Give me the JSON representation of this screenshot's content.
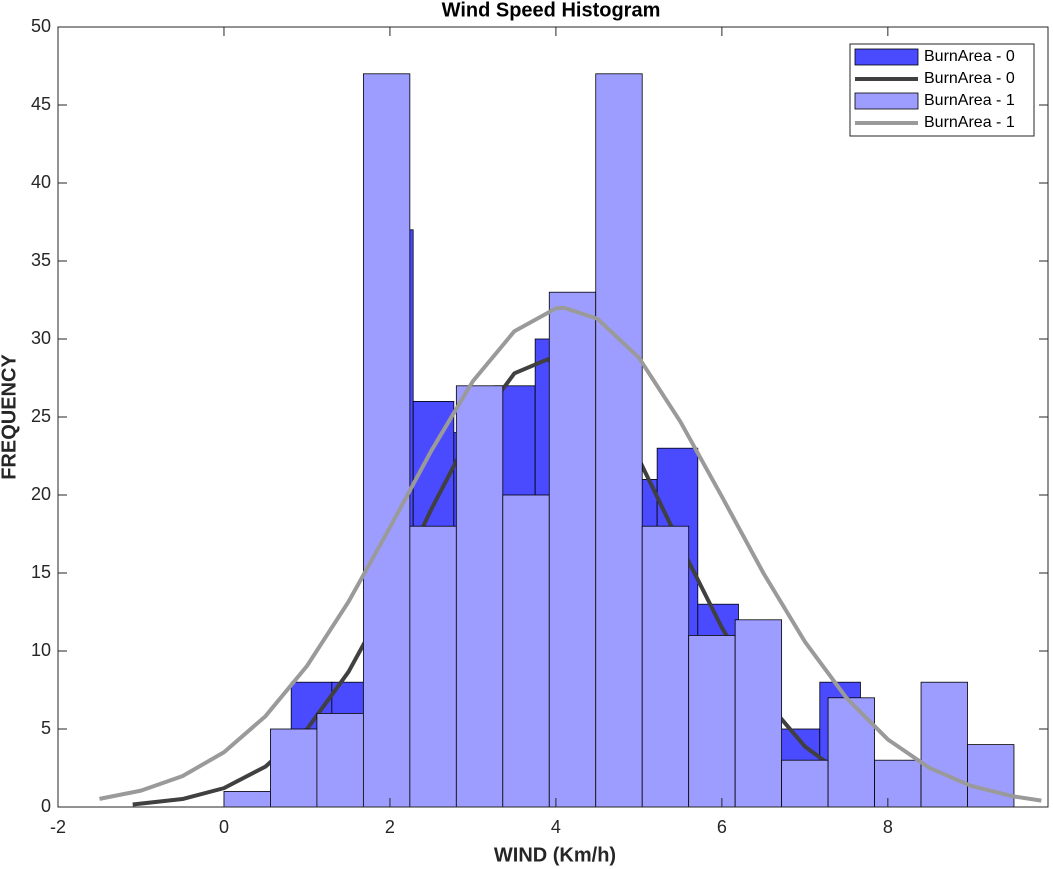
{
  "chart_data": {
    "type": "histogram",
    "title": "Wind Speed Histogram",
    "xlabel": "WIND (Km/h)",
    "ylabel": "FREQUENCY",
    "xlim": [
      -2,
      9.93
    ],
    "ylim": [
      0,
      50
    ],
    "xticks": [
      -2,
      0,
      2,
      4,
      6,
      8
    ],
    "yticks": [
      0,
      5,
      10,
      15,
      20,
      25,
      30,
      35,
      40,
      45,
      50
    ],
    "legend": "upper right",
    "series": [
      {
        "name": "BurnArea - 0",
        "type": "bar",
        "color": "#4a4aff",
        "bins": [
          0.81,
          1.3,
          1.79,
          2.28,
          2.77,
          3.26,
          3.75,
          4.24,
          4.73,
          5.22,
          5.71,
          6.2,
          6.69,
          7.18,
          7.67
        ],
        "values": [
          8,
          8,
          37,
          26,
          24,
          27,
          30,
          28,
          21,
          23,
          13,
          8,
          5,
          8
        ]
      },
      {
        "name": "BurnArea - 0",
        "type": "line",
        "color": "#404040",
        "x": [
          -1.1,
          -0.5,
          0,
          0.5,
          1,
          1.5,
          2,
          2.5,
          3,
          3.5,
          3.9,
          4.5,
          5,
          5.5,
          6,
          6.5,
          7,
          7.5,
          8,
          8.5,
          9
        ],
        "values": [
          0.16,
          0.51,
          1.21,
          2.59,
          4.99,
          8.66,
          13.5,
          19.1,
          24.2,
          27.8,
          28.7,
          26.6,
          22.3,
          16.8,
          11.5,
          7.0,
          3.88,
          1.93,
          0.87,
          0.35,
          0.13
        ]
      },
      {
        "name": "BurnArea - 1",
        "type": "bar",
        "color": "#9d9dff",
        "bins": [
          0,
          0.56,
          1.12,
          1.68,
          2.24,
          2.8,
          3.36,
          3.92,
          4.48,
          5.04,
          5.6,
          6.16,
          6.72,
          7.28,
          7.84,
          8.4,
          8.96,
          9.52
        ],
        "values": [
          1,
          5,
          6,
          47,
          18,
          27,
          20,
          33,
          47,
          18,
          11,
          12,
          3,
          7,
          3,
          8,
          4
        ]
      },
      {
        "name": "BurnArea - 1",
        "type": "line",
        "color": "#9a9a9a",
        "x": [
          -1.5,
          -1,
          -0.5,
          0,
          0.5,
          1,
          1.5,
          2,
          2.5,
          3,
          3.5,
          4,
          4.1,
          4.5,
          5,
          5.5,
          6,
          6.5,
          7,
          7.5,
          8,
          8.5,
          9,
          9.5,
          9.85
        ],
        "values": [
          0.52,
          1.05,
          1.98,
          3.51,
          5.82,
          9.04,
          13.15,
          17.92,
          22.85,
          27.3,
          30.5,
          31.96,
          32,
          31.3,
          28.8,
          24.7,
          19.9,
          15.0,
          10.6,
          7.0,
          4.33,
          2.51,
          1.36,
          0.69,
          0.41
        ]
      }
    ]
  }
}
